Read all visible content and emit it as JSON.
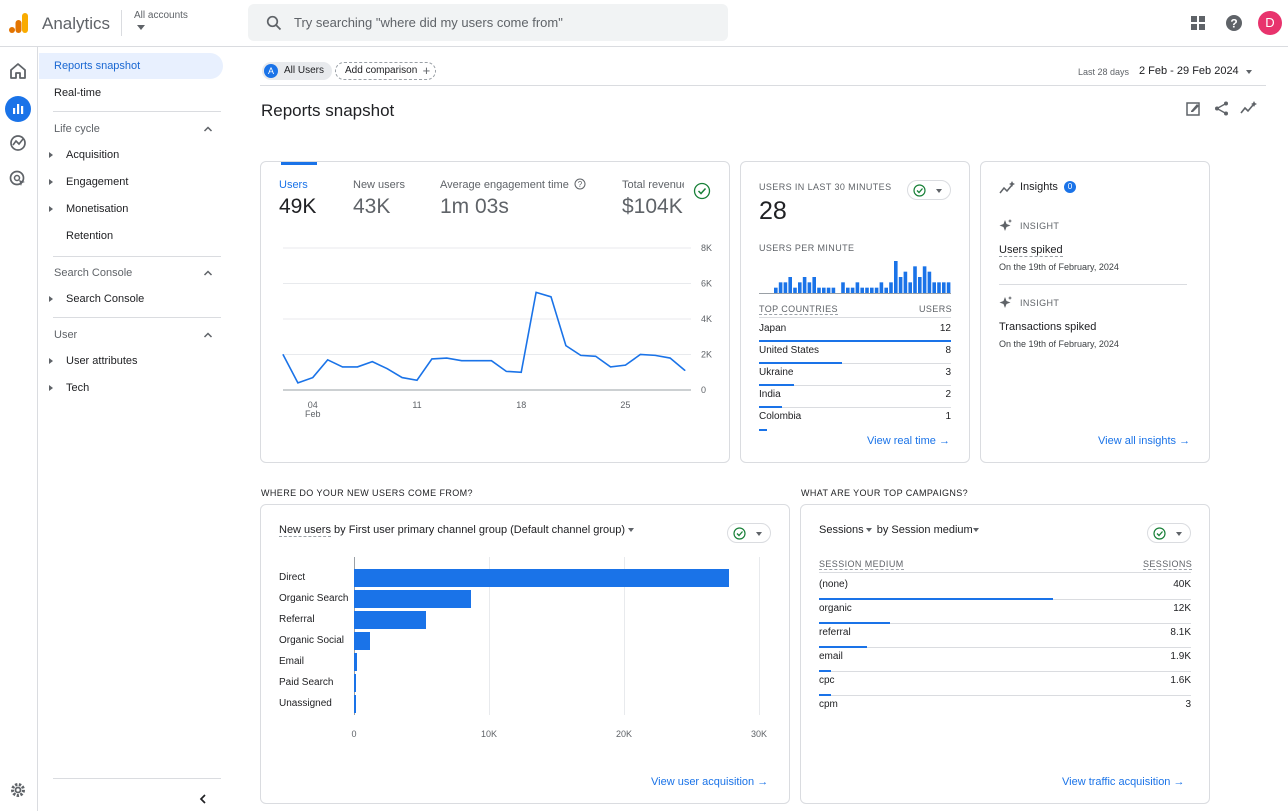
{
  "header": {
    "app_title": "Analytics",
    "accounts_label": "All accounts",
    "search_placeholder": "Try searching \"where did my users come from\"",
    "avatar_letter": "D",
    "avatar_color": "#e8336d"
  },
  "nav": {
    "top_items": [
      {
        "label": "Reports snapshot",
        "active": true
      },
      {
        "label": "Real-time",
        "active": false
      }
    ],
    "sections": [
      {
        "title": "Life cycle",
        "items": [
          "Acquisition",
          "Engagement",
          "Monetisation",
          "Retention"
        ]
      },
      {
        "title": "Search Console",
        "items": [
          "Search Console"
        ]
      },
      {
        "title": "User",
        "items": [
          "User attributes",
          "Tech"
        ]
      }
    ]
  },
  "filters": {
    "segment_letter": "A",
    "segment": "All Users",
    "add_comparison": "Add comparison",
    "date_range_label": "Last 28 days",
    "date_range": "2 Feb - 29 Feb 2024"
  },
  "page_title": "Reports snapshot",
  "overview": {
    "metrics": [
      {
        "label": "Users",
        "value": "49K",
        "active": true
      },
      {
        "label": "New users",
        "value": "43K"
      },
      {
        "label": "Average engagement time",
        "value": "1m 03s"
      },
      {
        "label": "Total revenue",
        "value": "$104K"
      }
    ],
    "chart_data": {
      "type": "line",
      "title": "",
      "xlabel": "",
      "ylabel": "",
      "x_tick_labels": [
        "04",
        "11",
        "18",
        "25"
      ],
      "x_month_label": "Feb",
      "y_tick_labels": [
        "8K",
        "6K",
        "4K",
        "2K",
        "0"
      ],
      "ylim": [
        0,
        8000
      ],
      "x": [
        "02-02",
        "02-03",
        "02-04",
        "02-05",
        "02-06",
        "02-07",
        "02-08",
        "02-09",
        "02-10",
        "02-11",
        "02-12",
        "02-13",
        "02-14",
        "02-15",
        "02-16",
        "02-17",
        "02-18",
        "02-19",
        "02-20",
        "02-21",
        "02-22",
        "02-23",
        "02-24",
        "02-25",
        "02-26",
        "02-27",
        "02-28",
        "02-29"
      ],
      "values": [
        2000,
        400,
        700,
        1700,
        1300,
        1300,
        1600,
        1200,
        700,
        550,
        1750,
        1800,
        1650,
        1650,
        1650,
        1050,
        1000,
        5500,
        5250,
        2500,
        1950,
        1900,
        1300,
        1400,
        2000,
        1950,
        1800,
        1100
      ],
      "grid": true
    }
  },
  "realtime": {
    "title": "USERS IN LAST 30 MINUTES",
    "value": "28",
    "per_minute_label": "USERS PER MINUTE",
    "per_minute": [
      0,
      0,
      0,
      1,
      2,
      2,
      3,
      1,
      2,
      3,
      2,
      3,
      1,
      1,
      1,
      1,
      0,
      2,
      1,
      1,
      2,
      1,
      1,
      1,
      1,
      2,
      1,
      2,
      6,
      3,
      4,
      2,
      5,
      3,
      5,
      4,
      2,
      2,
      2,
      2
    ],
    "countries_header": "TOP COUNTRIES",
    "users_header": "USERS",
    "countries": [
      {
        "name": "Japan",
        "value": "12",
        "pct": 1.0
      },
      {
        "name": "United States",
        "value": "8",
        "pct": 0.43
      },
      {
        "name": "Ukraine",
        "value": "3",
        "pct": 0.18
      },
      {
        "name": "India",
        "value": "2",
        "pct": 0.12
      },
      {
        "name": "Colombia",
        "value": "1",
        "pct": 0.04
      }
    ],
    "link": "View real time"
  },
  "insights": {
    "title": "Insights",
    "count": "0",
    "items": [
      {
        "tag": "INSIGHT",
        "title": "Users spiked",
        "detail": "On the 19th of February, 2024"
      },
      {
        "tag": "INSIGHT",
        "title": "Transactions spiked",
        "detail": "On the 19th of February, 2024"
      }
    ],
    "link": "View all insights"
  },
  "acquisition": {
    "section_title": "WHERE DO YOUR NEW USERS COME FROM?",
    "metric": "New users",
    "by_word": "by",
    "dimension": "First user primary channel group (Default channel group)",
    "chart_data": {
      "type": "bar",
      "orientation": "horizontal",
      "title": "",
      "xlabel": "",
      "ylabel": "",
      "categories": [
        "Direct",
        "Organic Search",
        "Referral",
        "Organic Social",
        "Email",
        "Paid Search",
        "Unassigned"
      ],
      "values": [
        27800,
        8700,
        5300,
        1200,
        250,
        150,
        100
      ],
      "xlim": [
        0,
        30000
      ],
      "tick_values": [
        0,
        10000,
        20000,
        30000
      ],
      "tick_labels": [
        "0",
        "10K",
        "20K",
        "30K"
      ],
      "grid": true
    },
    "link": "View user acquisition"
  },
  "campaigns": {
    "section_title": "WHAT ARE YOUR TOP CAMPAIGNS?",
    "metric": "Sessions",
    "by_word": "by",
    "dimension": "Session medium",
    "col_dim": "SESSION MEDIUM",
    "col_val": "SESSIONS",
    "rows": [
      {
        "name": "(none)",
        "value": "40K",
        "pct": 0.63
      },
      {
        "name": "organic",
        "value": "12K",
        "pct": 0.19
      },
      {
        "name": "referral",
        "value": "8.1K",
        "pct": 0.13
      },
      {
        "name": "email",
        "value": "1.9K",
        "pct": 0.03
      },
      {
        "name": "cpc",
        "value": "1.6K",
        "pct": 0.025
      },
      {
        "name": "cpm",
        "value": "3",
        "pct": 0
      }
    ],
    "link": "View traffic acquisition"
  },
  "colors": {
    "accent": "#1a73e8",
    "logo_orange": "#f9ab00",
    "logo_dark_orange": "#e37400"
  }
}
